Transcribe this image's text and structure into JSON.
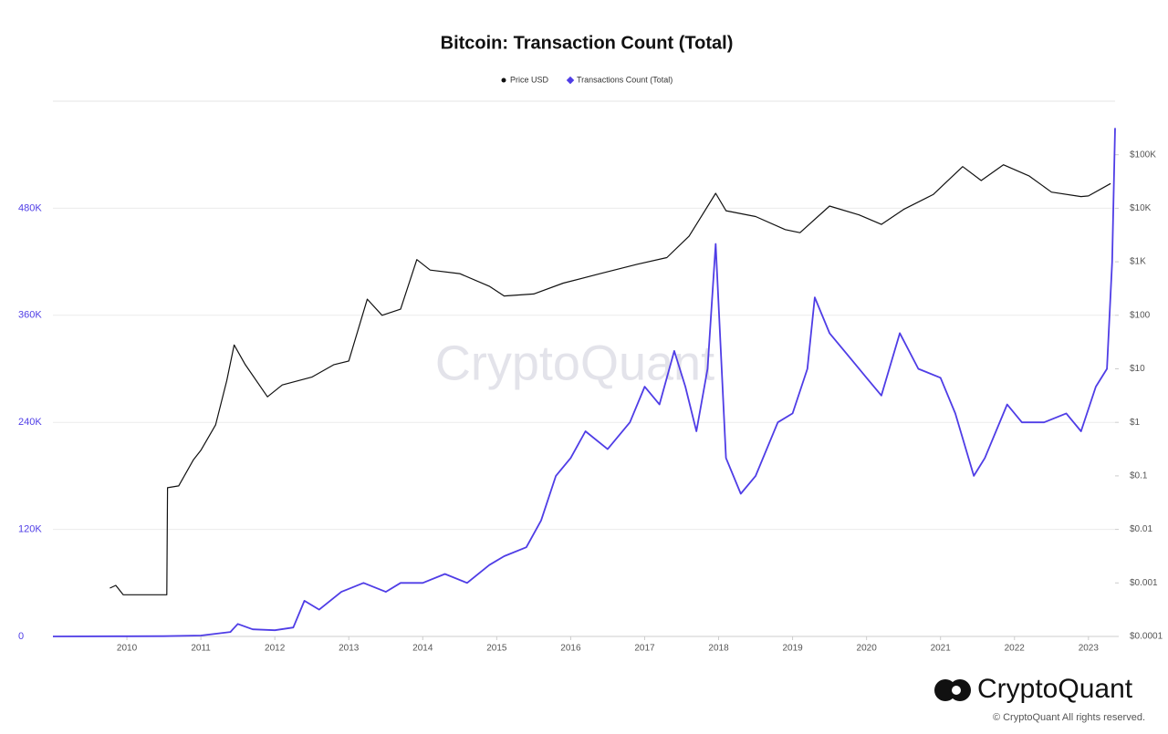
{
  "chart_data": {
    "type": "line",
    "title": "Bitcoin: Transaction Count (Total)",
    "watermark": "CryptoQuant",
    "brand": "CryptoQuant",
    "copyright": "© CryptoQuant All rights reserved.",
    "xlim": [
      2009,
      2023.36
    ],
    "xticks": [
      2010,
      2011,
      2012,
      2013,
      2014,
      2015,
      2016,
      2017,
      2018,
      2019,
      2020,
      2021,
      2022,
      2023
    ],
    "ylim": [
      0,
      600000
    ],
    "yticks": [
      {
        "value": 0,
        "label": "0"
      },
      {
        "value": 120000,
        "label": "120K"
      },
      {
        "value": 240000,
        "label": "240K"
      },
      {
        "value": 360000,
        "label": "360K"
      },
      {
        "value": 480000,
        "label": "480K"
      }
    ],
    "y2lim": [
      0.0001,
      1000000
    ],
    "y2scale": "log",
    "y2ticks": [
      {
        "value": 0.0001,
        "label": "$0.0001"
      },
      {
        "value": 0.001,
        "label": "$0.001"
      },
      {
        "value": 0.01,
        "label": "$0.01"
      },
      {
        "value": 0.1,
        "label": "$0.1"
      },
      {
        "value": 1,
        "label": "$1"
      },
      {
        "value": 10,
        "label": "$10"
      },
      {
        "value": 100,
        "label": "$100"
      },
      {
        "value": 1000,
        "label": "$1K"
      },
      {
        "value": 10000,
        "label": "$10K"
      },
      {
        "value": 100000,
        "label": "$100K"
      }
    ],
    "grid": true,
    "legend": "top",
    "series": [
      {
        "name": "Price USD",
        "color": "#111111",
        "marker": "circle",
        "axis": "y2",
        "x": [
          2009.77,
          2009.85,
          2009.95,
          2010.0,
          2010.54,
          2010.55,
          2010.7,
          2010.9,
          2011.0,
          2011.2,
          2011.35,
          2011.45,
          2011.6,
          2011.9,
          2012.1,
          2012.5,
          2012.8,
          2013.0,
          2013.25,
          2013.45,
          2013.7,
          2013.92,
          2014.1,
          2014.5,
          2014.9,
          2015.1,
          2015.5,
          2015.9,
          2016.4,
          2016.9,
          2017.3,
          2017.6,
          2017.96,
          2018.1,
          2018.5,
          2018.9,
          2019.1,
          2019.5,
          2019.9,
          2020.2,
          2020.5,
          2020.9,
          2021.3,
          2021.55,
          2021.85,
          2022.2,
          2022.5,
          2022.9,
          2023.0,
          2023.3
        ],
        "values": [
          0.0008,
          0.0009,
          0.0006,
          0.0006,
          0.0006,
          0.06,
          0.065,
          0.2,
          0.3,
          0.9,
          6,
          28,
          12,
          3,
          5,
          7,
          12,
          14,
          200,
          100,
          130,
          1100,
          700,
          600,
          350,
          230,
          250,
          400,
          600,
          900,
          1200,
          3000,
          19000,
          9000,
          7000,
          4000,
          3500,
          11000,
          7500,
          5000,
          9500,
          18000,
          60000,
          33000,
          65000,
          40000,
          20000,
          16500,
          17000,
          29000
        ]
      },
      {
        "name": "Transactions Count (Total)",
        "color": "#4f3de6",
        "marker": "diamond",
        "axis": "y",
        "x": [
          2009.0,
          2010.0,
          2010.5,
          2011.0,
          2011.4,
          2011.5,
          2011.7,
          2012.0,
          2012.25,
          2012.4,
          2012.6,
          2012.9,
          2013.2,
          2013.5,
          2013.7,
          2014.0,
          2014.3,
          2014.6,
          2014.9,
          2015.1,
          2015.4,
          2015.6,
          2015.8,
          2016.0,
          2016.2,
          2016.5,
          2016.8,
          2017.0,
          2017.2,
          2017.4,
          2017.55,
          2017.7,
          2017.85,
          2017.96,
          2018.1,
          2018.3,
          2018.5,
          2018.8,
          2019.0,
          2019.2,
          2019.3,
          2019.5,
          2019.8,
          2020.0,
          2020.2,
          2020.45,
          2020.7,
          2021.0,
          2021.2,
          2021.45,
          2021.6,
          2021.9,
          2022.1,
          2022.4,
          2022.7,
          2022.9,
          2023.1,
          2023.25,
          2023.32,
          2023.36
        ],
        "values": [
          0,
          200,
          300,
          1000,
          5000,
          14000,
          8000,
          7000,
          10000,
          40000,
          30000,
          50000,
          60000,
          50000,
          60000,
          60000,
          70000,
          60000,
          80000,
          90000,
          100000,
          130000,
          180000,
          200000,
          230000,
          210000,
          240000,
          280000,
          260000,
          320000,
          280000,
          230000,
          300000,
          440000,
          200000,
          160000,
          180000,
          240000,
          250000,
          300000,
          380000,
          340000,
          310000,
          290000,
          270000,
          340000,
          300000,
          290000,
          250000,
          180000,
          200000,
          260000,
          240000,
          240000,
          250000,
          230000,
          280000,
          300000,
          420000,
          570000
        ]
      }
    ]
  }
}
